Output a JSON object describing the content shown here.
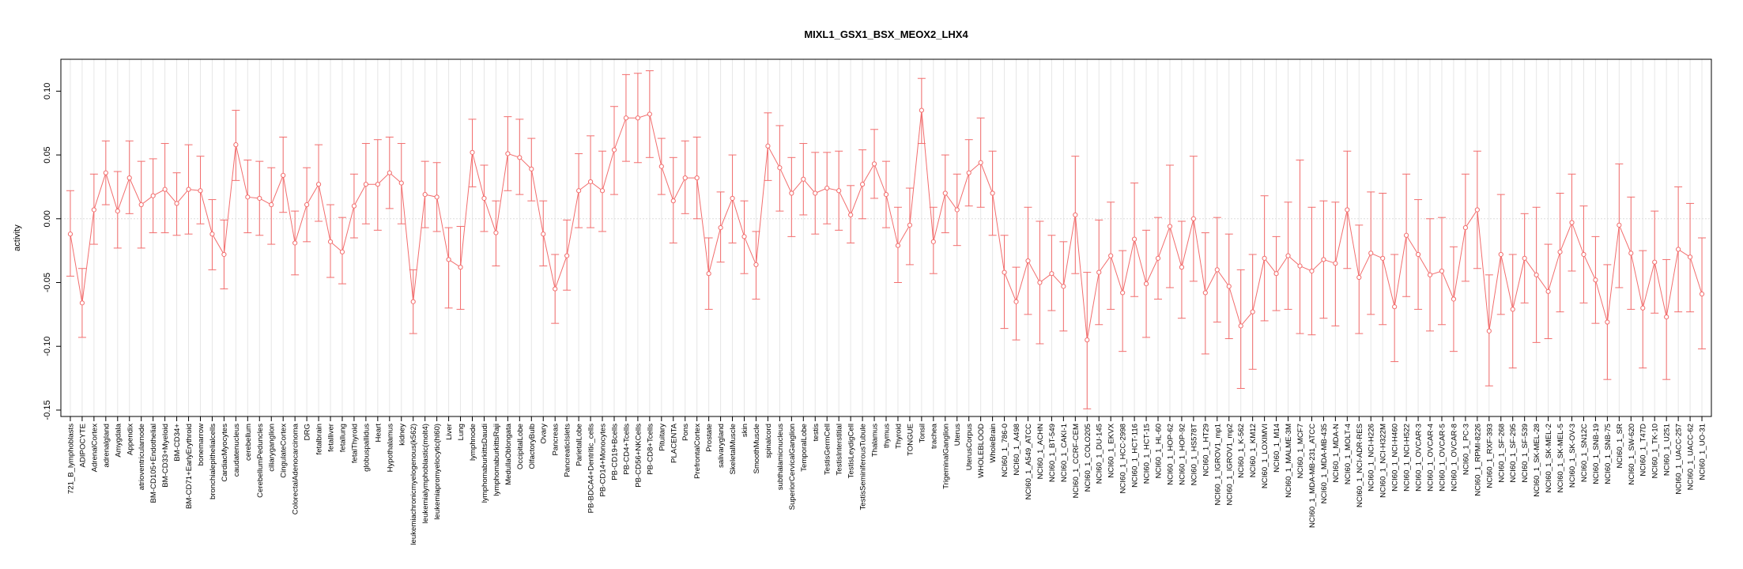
{
  "chart_data": {
    "type": "line",
    "title": "MIXL1_GSX1_BSX_MEOX2_LHX4",
    "xlabel": "",
    "ylabel": "activity",
    "ylim": [
      -0.155,
      0.125
    ],
    "yticks": [
      -0.15,
      -0.1,
      -0.05,
      0.0,
      0.05,
      0.1
    ],
    "ytick_labels": [
      "-0.15",
      "-0.10",
      "-0.05",
      "0.00",
      "0.05",
      "0.10"
    ],
    "grid": "vertical light lines per category, dotted zero line",
    "colors": {
      "series": "#f26d6d",
      "grid": "#e6e6e6",
      "zero": "#dddddd",
      "axis": "#000000"
    },
    "categories": [
      "721_B_lymphoblasts",
      "ADIPOCYTE",
      "AdrenalCortex",
      "adrenalgland",
      "Amygdala",
      "Appendix",
      "atrioventricularnode",
      "BM-CD105+Endothelial",
      "BM-CD33+Myeloid",
      "BM-CD34+",
      "BM-CD71+EarlyErythroid",
      "bonemarrow",
      "bronchialepithelialcells",
      "CardiacMyocytes",
      "caudatenucleus",
      "cerebellum",
      "CerebellumPeduncles",
      "ciliaryganglion",
      "CingulateCortex",
      "ColorectalAdenocarcinoma",
      "DRG",
      "fetalbrain",
      "fetalliver",
      "fetallung",
      "fetalThyroid",
      "globuspallidus",
      "Heart",
      "Hypothalamus",
      "kidney",
      "leukemiachronicmyelogenous(k562)",
      "leukemialymphoblastic(molt4)",
      "leukemiapromyelocytic(hl60)",
      "Liver",
      "Lung",
      "lymphnode",
      "lymphomaburkittsDaudi",
      "lymphomaburkittsRaji",
      "MedullaOblongata",
      "OccipitalLobe",
      "OlfactoryBulb",
      "Ovary",
      "Pancreas",
      "PancreaticIslets",
      "ParietalLobe",
      "PB-BDCA4+Dentritic_cells",
      "PB-CD14+Monocytes",
      "PB-CD19+Bcells",
      "PB-CD4+Tcells",
      "PB-CD56+NKCells",
      "PB-CD8+Tcells",
      "Pituitary",
      "PLACENTA",
      "Pons",
      "PrefrontalCortex",
      "Prostate",
      "salivarygland",
      "SkeletalMuscle",
      "skin",
      "SmoothMuscle",
      "spinalcord",
      "subthalamicnucleus",
      "SuperiorCervicalGanglion",
      "TemporalLobe",
      "testis",
      "TestisGermCell",
      "TestisInterstitial",
      "TestisLeydigCell",
      "TestisSeminiferousTubule",
      "Thalamus",
      "thymus",
      "Thyroid",
      "TONGUE",
      "Tonsil",
      "trachea",
      "TrigeminalGanglion",
      "Uterus",
      "UterusCorpus",
      "WHOLEBLOOD",
      "WholeBrain",
      "NCI60_1_786-0",
      "NCI60_1_A498",
      "NCI60_1_A549_ATCC",
      "NCI60_1_ACHN",
      "NCI60_1_BT-549",
      "NCI60_1_CAKI-1",
      "NCI60_1_CCRF-CEM",
      "NCI60_1_COLO205",
      "NCI60_1_DU-145",
      "NCI60_1_EKVX",
      "NCI60_1_HCC-2998",
      "NCI60_1_HCT-116",
      "NCI60_1_HCT-15",
      "NCI60_1_HL-60",
      "NCI60_1_HOP-62",
      "NCI60_1_HOP-92",
      "NCI60_1_HS578T",
      "NCI60_1_HT29",
      "NCI60_1_IGROV1_mp1",
      "NCI60_1_IGROV1_mp2",
      "NCI60_1_K-562",
      "NCI60_1_KM12",
      "NCI60_1_LOXIMVI",
      "NCI60_1_M14",
      "NCI60_1_MALME-3M",
      "NCI60_1_MCF7",
      "NCI60_1_MDA-MB-231_ATCC",
      "NCI60_1_MDA-MB-435",
      "NCI60_1_MDA-N",
      "NCI60_1_MOLT-4",
      "NCI60_1_NCI-ADR-RES",
      "NCI60_1_NCI-H226",
      "NCI60_1_NCI-H322M",
      "NCI60_1_NCI-H460",
      "NCI60_1_NCI-H522",
      "NCI60_1_OVCAR-3",
      "NCI60_1_OVCAR-4",
      "NCI60_1_OVCAR-5",
      "NCI60_1_OVCAR-8",
      "NCI60_1_PC-3",
      "NCI60_1_RPMI-8226",
      "NCI60_1_RXF-393",
      "NCI60_1_SF-268",
      "NCI60_1_SF-295",
      "NCI60_1_SF-539",
      "NCI60_1_SK-MEL-28",
      "NCI60_1_SK-MEL-2",
      "NCI60_1_SK-MEL-5",
      "NCI60_1_SK-OV-3",
      "NCI60_1_SN12C",
      "NCI60_1_SNB-19",
      "NCI60_1_SNB-75",
      "NCI60_1_SR",
      "NCI60_1_SW-620",
      "NCI60_1_T47D",
      "NCI60_1_TK-10",
      "NCI60_1_U251",
      "NCI60_1_UACC-257",
      "NCI60_1_UACC-62",
      "NCI60_1_UO-31"
    ],
    "series": [
      {
        "values": [
          -0.012,
          -0.066,
          0.007,
          0.036,
          0.006,
          0.032,
          0.011,
          0.018,
          0.023,
          0.012,
          0.023,
          0.022,
          -0.012,
          -0.028,
          0.058,
          0.017,
          0.016,
          0.011,
          0.034,
          -0.019,
          0.011,
          0.027,
          -0.018,
          -0.026,
          0.01,
          0.027,
          0.027,
          0.036,
          0.028,
          -0.065,
          0.019,
          0.017,
          -0.032,
          -0.038,
          0.052,
          0.016,
          -0.011,
          0.051,
          0.048,
          0.039,
          -0.012,
          -0.055,
          -0.029,
          0.022,
          0.029,
          0.022,
          0.054,
          0.079,
          0.079,
          0.082,
          0.041,
          0.014,
          0.032,
          0.032,
          -0.043,
          -0.007,
          0.016,
          -0.014,
          -0.036,
          0.057,
          0.04,
          0.02,
          0.031,
          0.02,
          0.024,
          0.022,
          0.003,
          0.027,
          0.043,
          0.019,
          -0.021,
          -0.005,
          0.085,
          -0.018,
          0.02,
          0.007,
          0.036,
          0.044,
          0.02,
          -0.042,
          -0.065,
          -0.033,
          -0.05,
          -0.043,
          -0.053,
          0.003,
          -0.095,
          -0.042,
          -0.029,
          -0.058,
          -0.016,
          -0.051,
          -0.031,
          -0.006,
          -0.038,
          0.0,
          -0.058,
          -0.04,
          -0.053,
          -0.084,
          -0.073,
          -0.031,
          -0.043,
          -0.029,
          -0.037,
          -0.041,
          -0.032,
          -0.035,
          0.007,
          -0.046,
          -0.027,
          -0.031,
          -0.069,
          -0.013,
          -0.028,
          -0.044,
          -0.041,
          -0.063,
          -0.007,
          0.007,
          -0.088,
          -0.028,
          -0.071,
          -0.031,
          -0.044,
          -0.057,
          -0.026,
          -0.003,
          -0.028,
          -0.048,
          -0.081,
          -0.005,
          -0.027,
          -0.07,
          -0.034,
          -0.077,
          -0.024,
          -0.03,
          -0.059
        ],
        "upper": [
          0.022,
          -0.039,
          0.035,
          0.061,
          0.037,
          0.061,
          0.045,
          0.047,
          0.059,
          0.036,
          0.058,
          0.049,
          0.015,
          -0.001,
          0.085,
          0.046,
          0.045,
          0.04,
          0.064,
          0.006,
          0.04,
          0.058,
          0.011,
          0.001,
          0.035,
          0.059,
          0.062,
          0.064,
          0.059,
          -0.04,
          0.045,
          0.044,
          -0.007,
          -0.006,
          0.078,
          0.042,
          0.014,
          0.08,
          0.078,
          0.063,
          0.014,
          -0.028,
          -0.001,
          0.051,
          0.065,
          0.053,
          0.088,
          0.113,
          0.114,
          0.116,
          0.063,
          0.048,
          0.061,
          0.064,
          -0.015,
          0.021,
          0.05,
          0.014,
          -0.01,
          0.083,
          0.073,
          0.048,
          0.059,
          0.052,
          0.052,
          0.053,
          0.026,
          0.054,
          0.07,
          0.045,
          0.009,
          0.024,
          0.11,
          0.009,
          0.05,
          0.035,
          0.062,
          0.079,
          0.053,
          -0.013,
          -0.038,
          0.009,
          -0.002,
          -0.013,
          -0.018,
          0.049,
          -0.042,
          -0.001,
          0.013,
          -0.025,
          0.028,
          -0.009,
          0.001,
          0.042,
          -0.002,
          0.049,
          -0.011,
          0.001,
          -0.012,
          -0.04,
          -0.028,
          0.018,
          -0.014,
          0.013,
          0.046,
          0.009,
          0.014,
          0.013,
          0.053,
          -0.005,
          0.021,
          0.02,
          -0.028,
          0.035,
          0.015,
          0.0,
          0.001,
          -0.022,
          0.035,
          0.053,
          -0.044,
          0.019,
          -0.028,
          0.004,
          0.009,
          -0.02,
          0.02,
          0.035,
          0.01,
          -0.014,
          -0.036,
          0.043,
          0.017,
          -0.025,
          0.006,
          -0.032,
          0.025,
          0.012,
          -0.015
        ],
        "lower": [
          -0.045,
          -0.093,
          -0.02,
          0.011,
          -0.023,
          0.004,
          -0.023,
          -0.011,
          -0.011,
          -0.013,
          -0.012,
          -0.004,
          -0.04,
          -0.055,
          0.03,
          -0.011,
          -0.013,
          -0.02,
          0.005,
          -0.044,
          -0.018,
          -0.002,
          -0.046,
          -0.051,
          -0.015,
          -0.004,
          -0.009,
          0.008,
          -0.004,
          -0.09,
          -0.007,
          -0.01,
          -0.07,
          -0.071,
          0.025,
          -0.01,
          -0.037,
          0.022,
          0.019,
          0.014,
          -0.037,
          -0.082,
          -0.056,
          -0.007,
          -0.007,
          -0.01,
          0.019,
          0.045,
          0.044,
          0.048,
          0.019,
          -0.019,
          0.004,
          0.0,
          -0.071,
          -0.034,
          -0.019,
          -0.043,
          -0.063,
          0.03,
          0.006,
          -0.014,
          0.003,
          -0.012,
          -0.004,
          -0.009,
          -0.019,
          0.0,
          0.016,
          -0.007,
          -0.05,
          -0.036,
          0.059,
          -0.043,
          -0.011,
          -0.021,
          0.01,
          0.009,
          -0.013,
          -0.086,
          -0.095,
          -0.075,
          -0.098,
          -0.072,
          -0.088,
          -0.043,
          -0.149,
          -0.083,
          -0.071,
          -0.104,
          -0.061,
          -0.093,
          -0.063,
          -0.054,
          -0.078,
          -0.049,
          -0.106,
          -0.081,
          -0.094,
          -0.133,
          -0.118,
          -0.08,
          -0.072,
          -0.071,
          -0.09,
          -0.091,
          -0.078,
          -0.084,
          -0.039,
          -0.09,
          -0.075,
          -0.083,
          -0.112,
          -0.061,
          -0.071,
          -0.088,
          -0.083,
          -0.104,
          -0.049,
          -0.039,
          -0.131,
          -0.075,
          -0.117,
          -0.066,
          -0.097,
          -0.094,
          -0.073,
          -0.041,
          -0.066,
          -0.082,
          -0.126,
          -0.054,
          -0.071,
          -0.117,
          -0.074,
          -0.126,
          -0.073,
          -0.073,
          -0.102
        ]
      }
    ]
  }
}
